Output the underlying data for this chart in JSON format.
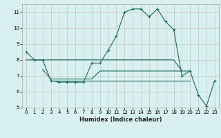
{
  "x": [
    0,
    1,
    2,
    3,
    4,
    5,
    6,
    7,
    8,
    9,
    10,
    11,
    12,
    13,
    14,
    15,
    16,
    17,
    18,
    19,
    20,
    21,
    22,
    23
  ],
  "y_main": [
    8.5,
    8.0,
    8.0,
    6.7,
    6.6,
    6.6,
    6.6,
    6.6,
    7.8,
    7.8,
    8.6,
    9.5,
    11.0,
    11.2,
    11.2,
    10.7,
    11.2,
    10.4,
    9.9,
    7.0,
    7.3,
    5.8,
    5.1,
    6.7
  ],
  "y_flat1": [
    8.0,
    8.0,
    8.0,
    8.0,
    8.0,
    8.0,
    8.0,
    8.0,
    8.0,
    8.0,
    8.0,
    8.0,
    8.0,
    8.0,
    8.0,
    8.0,
    8.0,
    8.0,
    8.0,
    7.3,
    7.3,
    null,
    null,
    null
  ],
  "y_flat2": [
    null,
    null,
    7.4,
    6.8,
    6.8,
    6.8,
    6.8,
    6.8,
    6.8,
    7.3,
    7.3,
    7.3,
    7.3,
    7.3,
    7.3,
    7.3,
    7.3,
    7.3,
    7.3,
    7.3,
    null,
    null,
    null,
    null
  ],
  "y_flat3": [
    null,
    null,
    null,
    6.7,
    6.7,
    6.7,
    6.7,
    6.7,
    6.7,
    6.7,
    6.7,
    6.7,
    6.7,
    6.7,
    6.7,
    6.7,
    6.7,
    6.7,
    6.7,
    6.7,
    6.7,
    null,
    null,
    null
  ],
  "line_color": "#1a6b5a",
  "bg_color": "#d8f0ef",
  "grid_major_color": "#c8c8c8",
  "grid_minor_color": "#e0e0e0",
  "xlabel": "Humidex (Indice chaleur)",
  "xlim": [
    -0.5,
    23.5
  ],
  "ylim": [
    5,
    11.5
  ],
  "yticks": [
    5,
    6,
    7,
    8,
    9,
    10,
    11
  ],
  "xticks": [
    0,
    1,
    2,
    3,
    4,
    5,
    6,
    7,
    8,
    9,
    10,
    11,
    12,
    13,
    14,
    15,
    16,
    17,
    18,
    19,
    20,
    21,
    22,
    23
  ],
  "figsize": [
    3.2,
    2.0
  ],
  "dpi": 100
}
